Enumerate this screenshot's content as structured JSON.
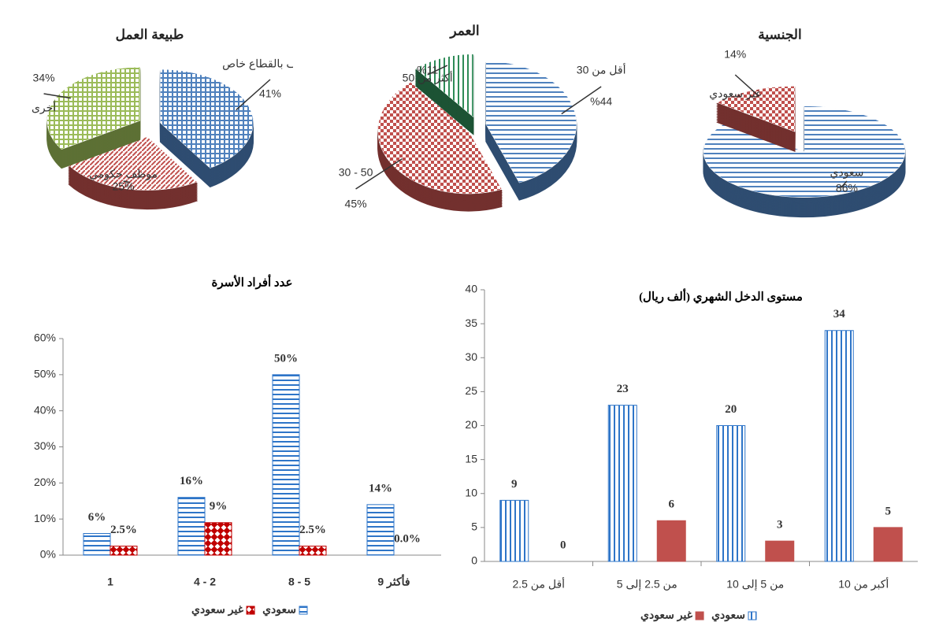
{
  "chart_data": [
    {
      "type": "pie",
      "title": "طبيعة العمل",
      "categories": [
        "موظف بالقطاع خاص",
        "موظف حكومي",
        "أخرى"
      ],
      "values": [
        41,
        25,
        34
      ],
      "value_labels": [
        "41%",
        "25%",
        "34%"
      ],
      "colors": [
        "#4f81bd",
        "#c0504d",
        "#9bbb59"
      ],
      "patterns": [
        "grid",
        "diagonal",
        "grid"
      ]
    },
    {
      "type": "pie",
      "title": "العمر",
      "categories": [
        "أقل من 30",
        "30 - 50",
        "أكثر من 50"
      ],
      "values": [
        44,
        45,
        11
      ],
      "value_labels": [
        "%44",
        "45%",
        "%11"
      ],
      "colors": [
        "#4f81bd",
        "#c0504d",
        "#2e8b57"
      ],
      "patterns": [
        "hstripes",
        "checker",
        "vstripes"
      ]
    },
    {
      "type": "pie",
      "title": "الجنسية",
      "categories": [
        "سعودي",
        "غير سعودي"
      ],
      "values": [
        86,
        14
      ],
      "value_labels": [
        "86%",
        "14%"
      ],
      "colors": [
        "#4f81bd",
        "#c0504d"
      ],
      "patterns": [
        "hstripes",
        "checker"
      ]
    },
    {
      "type": "bar",
      "title": "عدد أفراد الأسرة",
      "categories": [
        "1",
        "4 - 2",
        "8 - 5",
        "9 فأكثر"
      ],
      "series": [
        {
          "name": "سعودي",
          "color": "#2e75c8",
          "pattern": "hstripes",
          "values": [
            6,
            16,
            50,
            14
          ],
          "value_labels": [
            "6%",
            "16%",
            "50%",
            "14%"
          ]
        },
        {
          "name": "غير سعودي",
          "color": "#c00000",
          "pattern": "diamond",
          "values": [
            2.5,
            9,
            2.5,
            0
          ],
          "value_labels": [
            "2.5%",
            "9%",
            "2.5%",
            "0.0%"
          ]
        }
      ],
      "ylim": [
        0,
        60
      ],
      "yticks": [
        {
          "value": 0,
          "label": "0%"
        },
        {
          "value": 10,
          "label": "10%"
        },
        {
          "value": 20,
          "label": "20%"
        },
        {
          "value": 30,
          "label": "30%"
        },
        {
          "value": 40,
          "label": "40%"
        },
        {
          "value": 50,
          "label": "50%"
        },
        {
          "value": 60,
          "label": "60%"
        }
      ],
      "grid": false,
      "legend": "bottom"
    },
    {
      "type": "bar",
      "title": "مستوى الدخل الشهري (ألف ريال)",
      "categories": [
        "أقل من 2.5",
        "من 2.5 إلى 5",
        "من 5 إلى 10",
        "أكبر من 10"
      ],
      "series": [
        {
          "name": "سعودي",
          "color": "#2e75c8",
          "pattern": "vstripes",
          "values": [
            9,
            23,
            20,
            34
          ]
        },
        {
          "name": "غير سعودي",
          "color": "#c0504d",
          "pattern": "solid",
          "values": [
            0,
            6,
            3,
            5
          ]
        }
      ],
      "ylim": [
        0,
        40
      ],
      "yticks": [
        0,
        5,
        10,
        15,
        20,
        25,
        30,
        35,
        40
      ],
      "grid": false,
      "legend": "bottom"
    }
  ]
}
